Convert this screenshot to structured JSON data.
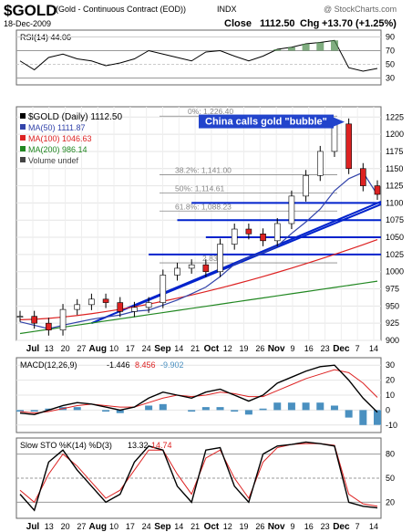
{
  "header": {
    "symbol": "$GOLD",
    "name": "(Gold - Continuous Contract (EOD))",
    "exchange": "INDX",
    "copyright": "@ StockCharts.com",
    "date": "18-Dec-2009",
    "close_label": "Close",
    "close_value": "1112.50",
    "chg_label": "Chg",
    "chg_value": "+13.70 (+1.25%)",
    "chg_arrow": "▲"
  },
  "rsi": {
    "label": "RSI(14) 44.06",
    "ticks": [
      "90",
      "70",
      "50",
      "30"
    ]
  },
  "price_panel": {
    "legend": [
      {
        "text": "$GOLD (Daily) 1112.50",
        "color": "#000000"
      },
      {
        "text": "MA(50) 1111.87",
        "color": "#3344aa"
      },
      {
        "text": "MA(100) 1046.63",
        "color": "#dd2222"
      },
      {
        "text": "MA(200) 986.14",
        "color": "#228822"
      },
      {
        "text": "Volume undef",
        "color": "#444444"
      }
    ],
    "annotation": "China calls gold \"bubble\"",
    "fib_levels": [
      "0%: 1,226.40",
      "38.2%: 1,141.00",
      "50%: 1,114.61",
      "61.8%: 1,088.23",
      "2.83"
    ],
    "ticks": [
      "1225",
      "1200",
      "1175",
      "1150",
      "1125",
      "1100",
      "1075",
      "1050",
      "1025",
      "1000",
      "975",
      "950",
      "925",
      "900"
    ]
  },
  "x_labels": [
    "Jul",
    "13",
    "20",
    "27",
    "Aug",
    "10",
    "17",
    "24",
    "Sep",
    "14",
    "21",
    "Oct",
    "12",
    "19",
    "26",
    "Nov",
    "9",
    "16",
    "23",
    "Dec",
    "7",
    "14"
  ],
  "macd": {
    "label": "MACD(12,26,9)",
    "value1": "-1.446",
    "value2": "8.456",
    "value3": "-9.902",
    "ticks": [
      "30",
      "20",
      "10",
      "0",
      "-10"
    ]
  },
  "sto": {
    "label": "Slow STO %K(14) %D(3)",
    "value1": "13.32",
    "value2": "14.74",
    "ticks": [
      "80",
      "50",
      "20"
    ]
  },
  "chart_data": {
    "type": "candlestick",
    "title": "$GOLD (Gold - Continuous Contract (EOD))",
    "price_ylim": [
      900,
      1240
    ],
    "price": [
      {
        "d": "Jul 1",
        "v": 935
      },
      {
        "d": "Jul 8",
        "v": 925
      },
      {
        "d": "Jul 13",
        "v": 915
      },
      {
        "d": "Jul 20",
        "v": 945
      },
      {
        "d": "Jul 27",
        "v": 952
      },
      {
        "d": "Aug 3",
        "v": 960
      },
      {
        "d": "Aug 10",
        "v": 955
      },
      {
        "d": "Aug 17",
        "v": 942
      },
      {
        "d": "Aug 24",
        "v": 948
      },
      {
        "d": "Aug 31",
        "v": 955
      },
      {
        "d": "Sep 8",
        "v": 995
      },
      {
        "d": "Sep 14",
        "v": 1005
      },
      {
        "d": "Sep 21",
        "v": 1010
      },
      {
        "d": "Sep 28",
        "v": 1000
      },
      {
        "d": "Oct 5",
        "v": 1040
      },
      {
        "d": "Oct 12",
        "v": 1062
      },
      {
        "d": "Oct 19",
        "v": 1055
      },
      {
        "d": "Oct 26",
        "v": 1045
      },
      {
        "d": "Nov 2",
        "v": 1070
      },
      {
        "d": "Nov 9",
        "v": 1110
      },
      {
        "d": "Nov 16",
        "v": 1140
      },
      {
        "d": "Nov 23",
        "v": 1175
      },
      {
        "d": "Dec 1",
        "v": 1215
      },
      {
        "d": "Dec 7",
        "v": 1150
      },
      {
        "d": "Dec 14",
        "v": 1125
      },
      {
        "d": "Dec 18",
        "v": 1112.5
      }
    ],
    "ma50_end": 1111.87,
    "ma100_end": 1046.63,
    "ma200_end": 986.14,
    "horizontal_levels": [
      1100,
      1075,
      1050,
      1025
    ],
    "rsi_ylim": [
      20,
      100
    ],
    "rsi": [
      55,
      42,
      60,
      65,
      58,
      55,
      48,
      52,
      58,
      70,
      65,
      60,
      55,
      68,
      70,
      62,
      55,
      62,
      72,
      75,
      80,
      82,
      85,
      45,
      40,
      44
    ],
    "macd_ylim": [
      -15,
      35
    ],
    "macd": [
      -2,
      -3,
      0,
      3,
      5,
      4,
      2,
      0,
      2,
      8,
      12,
      10,
      8,
      12,
      14,
      10,
      6,
      10,
      18,
      22,
      26,
      29,
      30,
      20,
      8,
      -1.4
    ],
    "macd_signal": [
      -1,
      -2,
      -1,
      1,
      3,
      4,
      3,
      2,
      2,
      5,
      8,
      10,
      9,
      10,
      12,
      11,
      9,
      9,
      13,
      17,
      21,
      24,
      27,
      25,
      18,
      8.5
    ],
    "sto_ylim": [
      0,
      100
    ],
    "sto_k": [
      30,
      10,
      70,
      85,
      60,
      40,
      20,
      30,
      70,
      90,
      85,
      40,
      20,
      85,
      88,
      40,
      20,
      80,
      90,
      92,
      95,
      93,
      90,
      20,
      15,
      13
    ],
    "sto_d": [
      35,
      20,
      55,
      80,
      65,
      45,
      25,
      35,
      60,
      85,
      85,
      55,
      30,
      75,
      85,
      50,
      25,
      70,
      88,
      92,
      93,
      93,
      91,
      30,
      18,
      15
    ]
  }
}
